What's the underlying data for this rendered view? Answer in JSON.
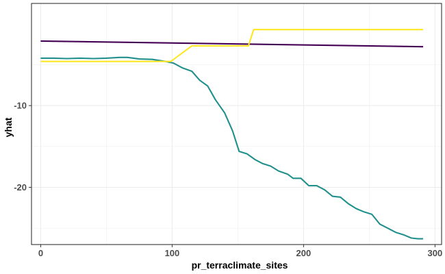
{
  "chart_data": {
    "type": "line",
    "title": "",
    "xlabel": "pr_terraclimate_sites",
    "ylabel": "yhat",
    "xlim": [
      -7,
      305
    ],
    "ylim": [
      -27,
      2.5
    ],
    "x_ticks": [
      0,
      100,
      200,
      300
    ],
    "x_tick_labels": [
      "0",
      "100",
      "200",
      "300"
    ],
    "y_ticks": [
      -10,
      -20
    ],
    "y_tick_labels": [
      "-10",
      "-20"
    ],
    "grid": true,
    "legend": "none",
    "series": [
      {
        "color": "#440154",
        "points": [
          [
            0,
            -2.1
          ],
          [
            291,
            -2.8
          ]
        ]
      },
      {
        "color": "#21908C",
        "points": [
          [
            0,
            -4.2
          ],
          [
            10,
            -4.2
          ],
          [
            20,
            -4.25
          ],
          [
            30,
            -4.2
          ],
          [
            40,
            -4.25
          ],
          [
            50,
            -4.2
          ],
          [
            60,
            -4.1
          ],
          [
            66,
            -4.1
          ],
          [
            75,
            -4.3
          ],
          [
            85,
            -4.35
          ],
          [
            95,
            -4.6
          ],
          [
            101,
            -4.8
          ],
          [
            108,
            -5.4
          ],
          [
            115,
            -5.8
          ],
          [
            121,
            -6.9
          ],
          [
            127,
            -7.6
          ],
          [
            133,
            -9.3
          ],
          [
            140,
            -10.9
          ],
          [
            146,
            -13.1
          ],
          [
            151,
            -15.6
          ],
          [
            157,
            -15.9
          ],
          [
            163,
            -16.6
          ],
          [
            169,
            -17.1
          ],
          [
            175,
            -17.4
          ],
          [
            181,
            -18.0
          ],
          [
            188,
            -18.4
          ],
          [
            192,
            -18.9
          ],
          [
            198,
            -18.9
          ],
          [
            204,
            -19.8
          ],
          [
            210,
            -19.8
          ],
          [
            216,
            -20.3
          ],
          [
            222,
            -21.1
          ],
          [
            228,
            -21.2
          ],
          [
            234,
            -22.0
          ],
          [
            240,
            -22.6
          ],
          [
            246,
            -23.0
          ],
          [
            252,
            -23.3
          ],
          [
            258,
            -24.5
          ],
          [
            264,
            -25.0
          ],
          [
            270,
            -25.5
          ],
          [
            276,
            -25.8
          ],
          [
            282,
            -26.2
          ],
          [
            287,
            -26.3
          ],
          [
            291,
            -26.3
          ]
        ]
      },
      {
        "color": "#FDE725",
        "points": [
          [
            0,
            -4.6
          ],
          [
            99,
            -4.6
          ],
          [
            115,
            -2.7
          ],
          [
            158,
            -2.7
          ],
          [
            162,
            -0.7
          ],
          [
            291,
            -0.7
          ]
        ]
      }
    ]
  }
}
